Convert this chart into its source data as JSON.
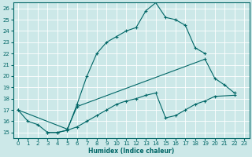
{
  "bg_color": "#cce8e8",
  "grid_color": "#b8d8d8",
  "line_color": "#006666",
  "xlabel": "Humidex (Indice chaleur)",
  "xlim": [
    -0.5,
    23.5
  ],
  "ylim": [
    14.5,
    26.5
  ],
  "xticks": [
    0,
    1,
    2,
    3,
    4,
    5,
    6,
    7,
    8,
    9,
    10,
    11,
    12,
    13,
    14,
    15,
    16,
    17,
    18,
    19,
    20,
    21,
    22,
    23
  ],
  "yticks": [
    15,
    16,
    17,
    18,
    19,
    20,
    21,
    22,
    23,
    24,
    25,
    26
  ],
  "series": [
    {
      "x": [
        0,
        1,
        2,
        3,
        4,
        5,
        6,
        7,
        8,
        9,
        10,
        11,
        12,
        13,
        14,
        15,
        16,
        17,
        18,
        19
      ],
      "y": [
        17.0,
        16.0,
        15.7,
        15.0,
        15.0,
        15.2,
        17.5,
        20.0,
        22.0,
        23.0,
        23.5,
        24.0,
        24.3,
        25.8,
        26.5,
        25.2,
        25.0,
        24.5,
        22.5,
        22.0
      ]
    },
    {
      "x": [
        0,
        5,
        6,
        19,
        20,
        21,
        22
      ],
      "y": [
        17.0,
        15.3,
        17.3,
        21.5,
        19.8,
        19.2,
        18.5
      ]
    },
    {
      "x": [
        3,
        4,
        5,
        6,
        7,
        8,
        9,
        10,
        11,
        12,
        13,
        14,
        15,
        16,
        17,
        18,
        19,
        20,
        22
      ],
      "y": [
        15.0,
        15.0,
        15.2,
        15.5,
        16.0,
        16.5,
        17.0,
        17.5,
        17.8,
        18.0,
        18.3,
        18.5,
        16.3,
        16.5,
        17.0,
        17.5,
        17.8,
        18.2,
        18.3
      ]
    }
  ]
}
